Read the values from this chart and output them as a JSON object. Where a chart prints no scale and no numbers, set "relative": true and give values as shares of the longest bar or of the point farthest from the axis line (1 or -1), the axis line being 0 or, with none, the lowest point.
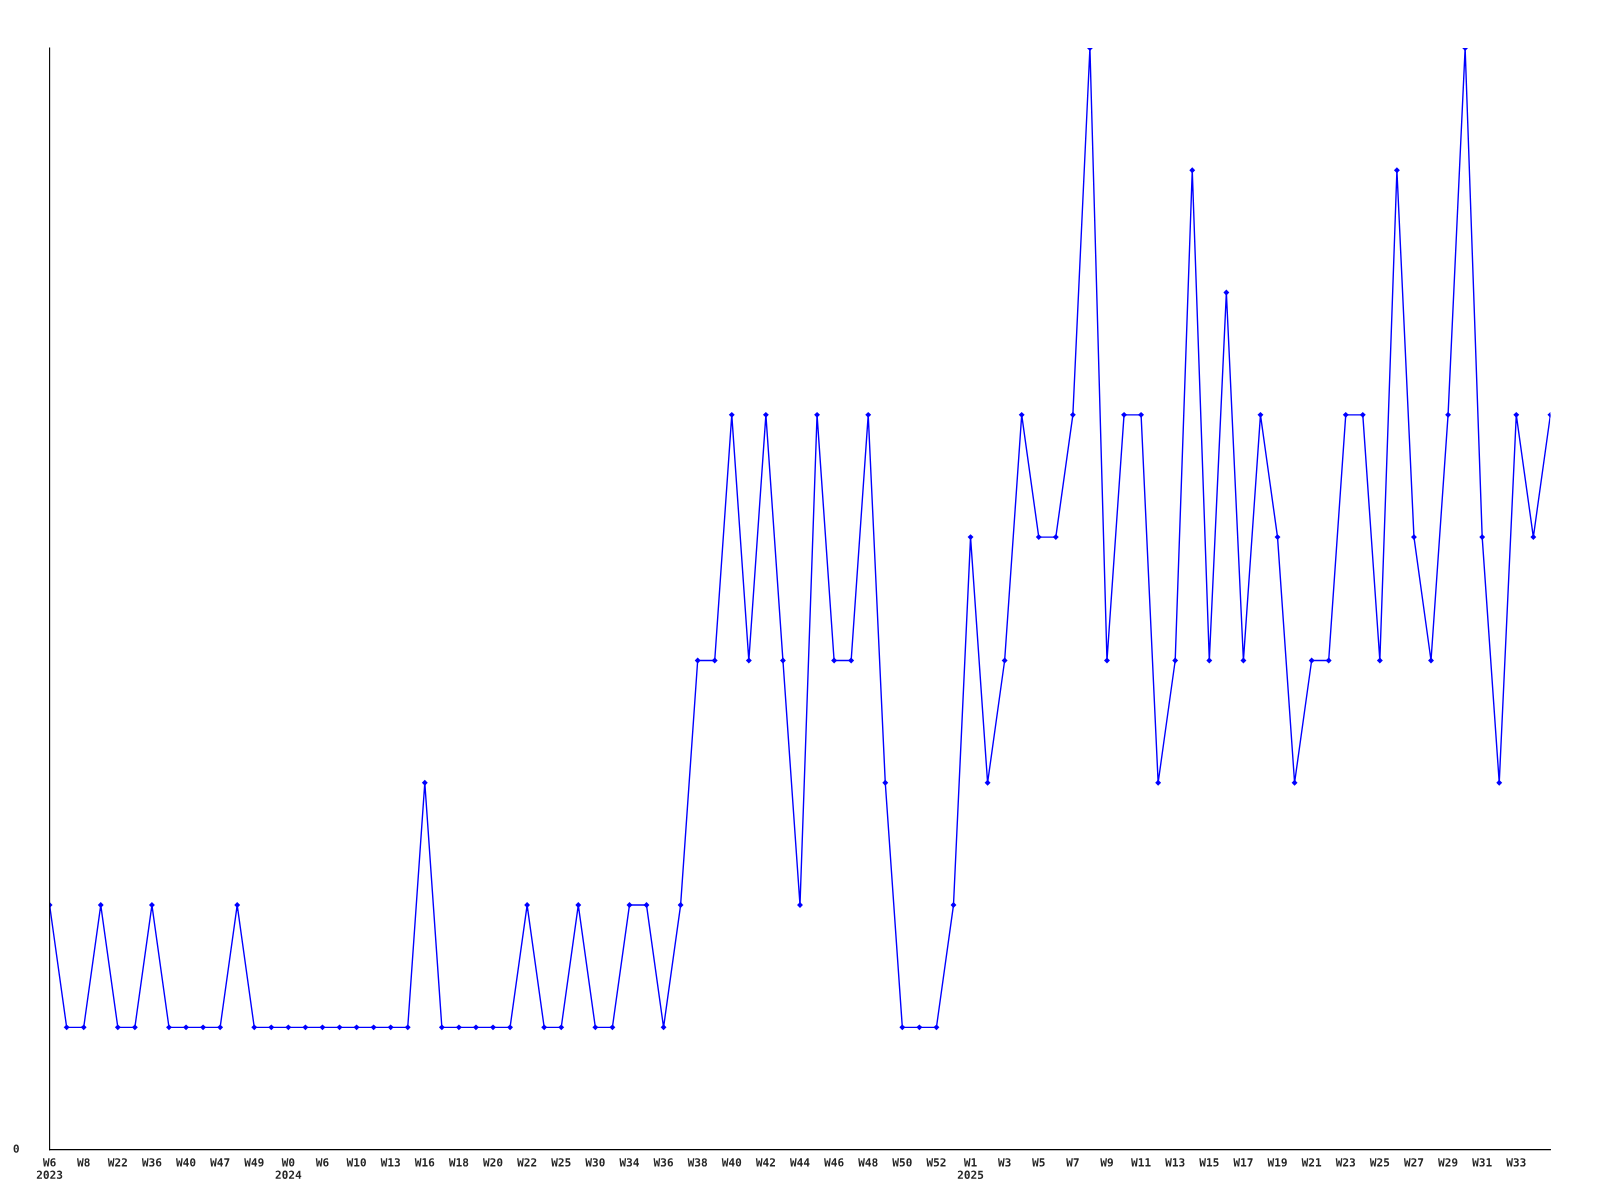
{
  "chart_data": {
    "type": "line",
    "relative": true,
    "marker": "diamond",
    "line_style": "solid",
    "grid": false,
    "legend": false,
    "annotations": [
      "0"
    ],
    "categories": [
      "W6\n2023",
      null,
      "W8",
      null,
      "W22",
      null,
      "W36",
      null,
      "W40",
      null,
      "W47",
      null,
      "W49",
      null,
      "W0\n2024",
      null,
      "W6",
      null,
      "W10",
      null,
      "W13",
      null,
      "W16",
      null,
      "W18",
      null,
      "W20",
      null,
      "W22",
      null,
      "W25",
      null,
      "W30",
      null,
      "W34",
      null,
      "W36",
      null,
      "W38",
      null,
      "W40",
      null,
      "W42",
      null,
      "W44",
      null,
      "W46",
      null,
      "W48",
      null,
      "W50",
      null,
      "W52",
      null,
      "W1\n2025",
      null,
      "W3",
      null,
      "W5",
      null,
      "W7",
      null,
      "W9",
      null,
      "W11",
      null,
      "W13",
      null,
      "W15",
      null,
      "W17",
      null,
      "W19",
      null,
      "W21",
      null,
      "W23",
      null,
      "W25",
      null,
      "W27",
      null,
      "W29",
      null,
      "W31",
      null,
      "W33",
      null,
      null
    ],
    "series": [
      {
        "color": "#0000ff",
        "values": [
          0.222,
          0.111,
          0.111,
          0.222,
          0.111,
          0.111,
          0.222,
          0.111,
          0.111,
          0.111,
          0.111,
          0.222,
          0.111,
          0.111,
          0.111,
          0.111,
          0.111,
          0.111,
          0.111,
          0.111,
          0.111,
          0.111,
          0.333,
          0.111,
          0.111,
          0.111,
          0.111,
          0.111,
          0.222,
          0.111,
          0.111,
          0.222,
          0.111,
          0.111,
          0.222,
          0.222,
          0.111,
          0.222,
          0.444,
          0.444,
          0.667,
          0.444,
          0.667,
          0.444,
          0.222,
          0.667,
          0.444,
          0.444,
          0.667,
          0.333,
          0.111,
          0.111,
          0.111,
          0.222,
          0.556,
          0.333,
          0.444,
          0.667,
          0.556,
          0.556,
          0.667,
          1,
          0.444,
          0.667,
          0.667,
          0.333,
          0.444,
          0.889,
          0.444,
          0.778,
          0.444,
          0.667,
          0.556,
          0.333,
          0.444,
          0.444,
          0.667,
          0.667,
          0.444,
          0.889,
          0.556,
          0.444,
          0.667,
          1,
          0.556,
          0.333,
          0.667,
          0.556,
          0.667
        ]
      }
    ]
  }
}
